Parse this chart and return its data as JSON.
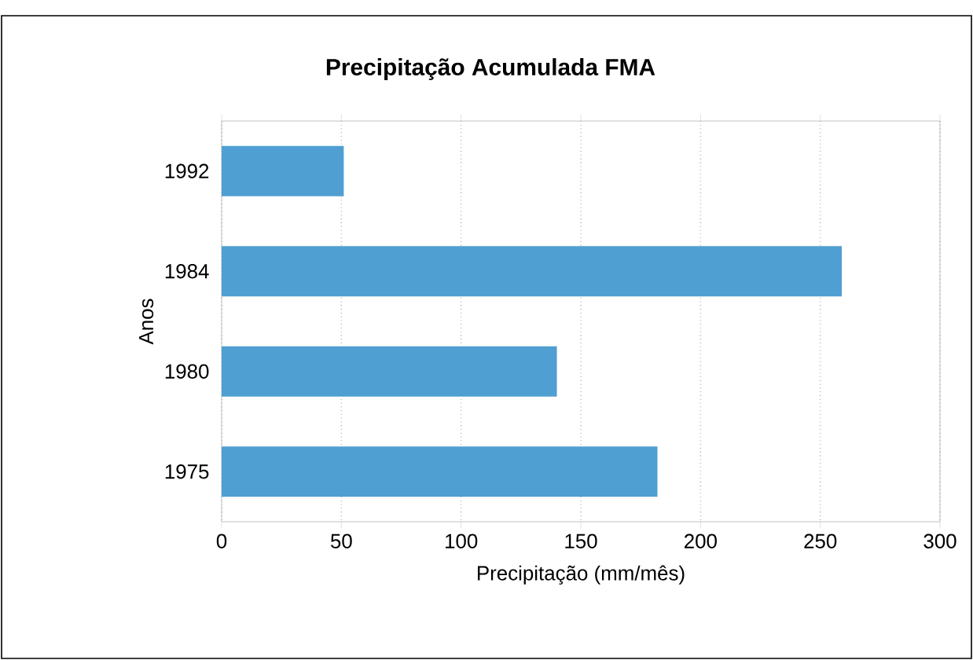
{
  "chart_data": {
    "type": "bar",
    "orientation": "horizontal",
    "title": "Precipitação Acumulada FMA",
    "xlabel": "Precipitação (mm/mês)",
    "ylabel": "Anos",
    "categories": [
      "1992",
      "1984",
      "1980",
      "1975"
    ],
    "values": [
      51,
      259,
      140,
      182
    ],
    "color": "#4f9fd2",
    "xlim": [
      0,
      300
    ],
    "xticks": [
      0,
      50,
      100,
      150,
      200,
      250,
      300
    ],
    "grid": "x"
  }
}
